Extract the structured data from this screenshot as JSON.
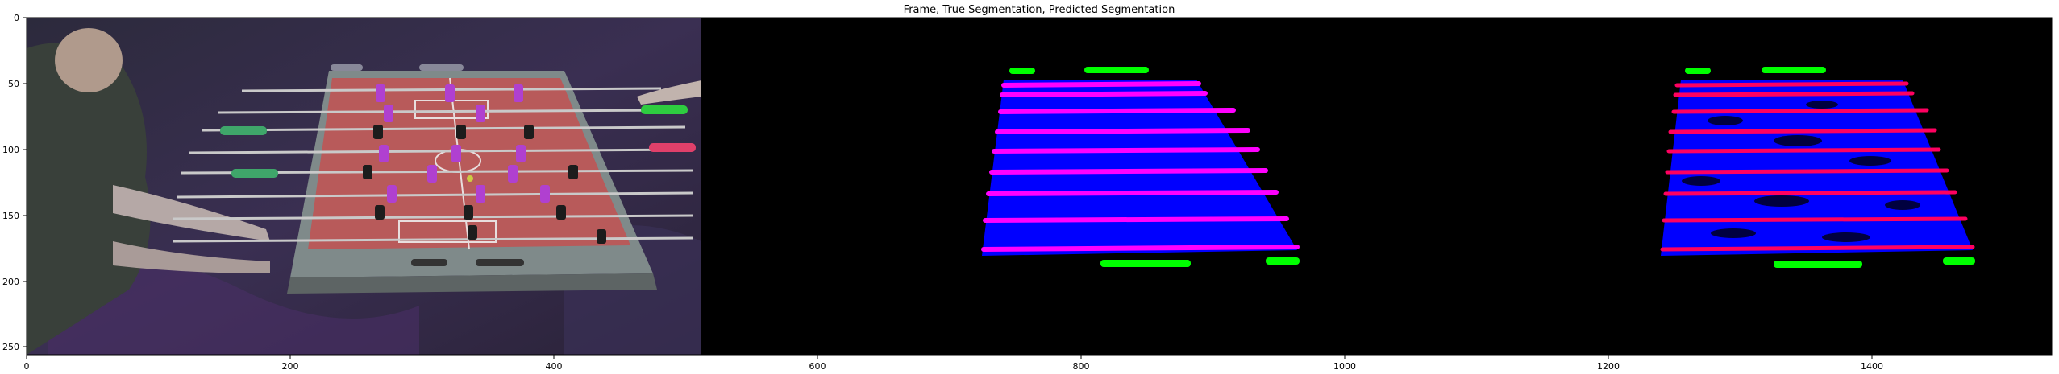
{
  "figure": {
    "title": "Frame, True Segmentation, Predicted Segmentation",
    "panels": [
      "frame",
      "true-segmentation",
      "predicted-segmentation"
    ],
    "x_ticks": [
      "0",
      "200",
      "400",
      "600",
      "800",
      "1000",
      "1200",
      "1400"
    ],
    "y_ticks": [
      "0",
      "50",
      "100",
      "150",
      "200",
      "250"
    ],
    "xlim": [
      0,
      1536
    ],
    "ylim": [
      256,
      0
    ]
  },
  "colors": {
    "background": "#000000",
    "table_field": "#b85a5a",
    "table_frame": "#7f8a8a",
    "segmentation_field": "#0000ff",
    "segmentation_rods": "#ff00ff",
    "segmentation_handles": "#00ff00"
  }
}
